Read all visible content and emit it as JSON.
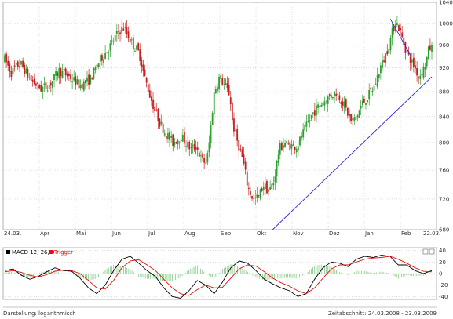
{
  "chart_data": [
    {
      "type": "candlestick",
      "title": "",
      "scale": "logarithmic",
      "grid": true,
      "y_ticks": [
        680,
        720,
        760,
        800,
        840,
        880,
        920,
        960,
        1000,
        1040
      ],
      "ylim": [
        680,
        1040
      ],
      "x_ticks": [
        "24.03.",
        "Apr",
        "Mai",
        "Jun",
        "Jul",
        "Aug",
        "Sep",
        "Okt",
        "Nov",
        "Dez",
        "Jan",
        "Feb",
        "22.03."
      ],
      "colors": {
        "up": "#2e9e2e",
        "down": "#c61f1f",
        "trendline": "#2a2ad6",
        "grid": "#cccccc"
      },
      "close_path": [
        [
          0,
          935
        ],
        [
          5,
          912
        ],
        [
          12,
          928
        ],
        [
          20,
          900
        ],
        [
          28,
          885
        ],
        [
          35,
          892
        ],
        [
          42,
          915
        ],
        [
          50,
          905
        ],
        [
          58,
          890
        ],
        [
          66,
          900
        ],
        [
          74,
          935
        ],
        [
          82,
          960
        ],
        [
          88,
          985
        ],
        [
          92,
          992
        ],
        [
          98,
          965
        ],
        [
          104,
          945
        ],
        [
          108,
          905
        ],
        [
          112,
          875
        ],
        [
          116,
          850
        ],
        [
          120,
          830
        ],
        [
          124,
          815
        ],
        [
          130,
          800
        ],
        [
          136,
          810
        ],
        [
          140,
          800
        ],
        [
          144,
          790
        ],
        [
          148,
          795
        ],
        [
          152,
          775
        ],
        [
          156,
          770
        ],
        [
          158,
          800
        ],
        [
          162,
          880
        ],
        [
          166,
          905
        ],
        [
          170,
          890
        ],
        [
          174,
          875
        ],
        [
          176,
          830
        ],
        [
          180,
          800
        ],
        [
          184,
          775
        ],
        [
          188,
          735
        ],
        [
          192,
          720
        ],
        [
          196,
          722
        ],
        [
          200,
          740
        ],
        [
          204,
          730
        ],
        [
          208,
          745
        ],
        [
          212,
          790
        ],
        [
          216,
          800
        ],
        [
          220,
          795
        ],
        [
          226,
          795
        ],
        [
          232,
          820
        ],
        [
          238,
          845
        ],
        [
          244,
          860
        ],
        [
          250,
          870
        ],
        [
          256,
          880
        ],
        [
          262,
          860
        ],
        [
          268,
          830
        ],
        [
          272,
          840
        ],
        [
          276,
          860
        ],
        [
          280,
          870
        ],
        [
          286,
          890
        ],
        [
          290,
          920
        ],
        [
          294,
          940
        ],
        [
          298,
          970
        ],
        [
          302,
          1005
        ],
        [
          305,
          990
        ],
        [
          308,
          965
        ],
        [
          312,
          940
        ],
        [
          316,
          925
        ],
        [
          320,
          905
        ],
        [
          324,
          920
        ],
        [
          326,
          935
        ],
        [
          328,
          955
        ]
      ],
      "trendlines": [
        {
          "from": [
            207,
            680
          ],
          "to": [
            330,
            905
          ]
        },
        {
          "from": [
            298,
            1008
          ],
          "to": [
            314,
            940
          ]
        }
      ]
    },
    {
      "type": "line",
      "title": "MACD 12, 26, 9",
      "y_ticks": [
        40,
        20,
        0,
        -20,
        -40
      ],
      "ylim": [
        -45,
        45
      ],
      "series": [
        {
          "name": "MACD 12, 26, 9",
          "color": "#000000",
          "values": [
            5,
            8,
            -3,
            -10,
            -5,
            3,
            10,
            5,
            4,
            -8,
            -25,
            -35,
            -20,
            5,
            25,
            30,
            18,
            5,
            -5,
            -25,
            -40,
            -43,
            -30,
            -12,
            -20,
            -35,
            -15,
            10,
            22,
            18,
            5,
            -10,
            -18,
            -25,
            -30,
            -40,
            -35,
            -10,
            10,
            20,
            18,
            12,
            25,
            30,
            28,
            32,
            30,
            15,
            15,
            5,
            0,
            5
          ]
        },
        {
          "name": "Trigger",
          "color": "#dd1111",
          "values": [
            3,
            5,
            2,
            -3,
            -6,
            -2,
            4,
            6,
            5,
            0,
            -12,
            -25,
            -27,
            -12,
            10,
            22,
            24,
            15,
            5,
            -10,
            -25,
            -35,
            -38,
            -28,
            -20,
            -25,
            -24,
            -8,
            8,
            15,
            13,
            3,
            -8,
            -16,
            -22,
            -30,
            -35,
            -25,
            -8,
            8,
            15,
            15,
            20,
            25,
            27,
            28,
            30,
            25,
            18,
            10,
            4,
            3
          ]
        }
      ],
      "histogram_color": "#8fcf8f"
    }
  ],
  "footer": {
    "left": "Darstellung: logarithmisch",
    "right": "Zeitabschnitt: 24.03.2008 - 23.03.2009"
  }
}
